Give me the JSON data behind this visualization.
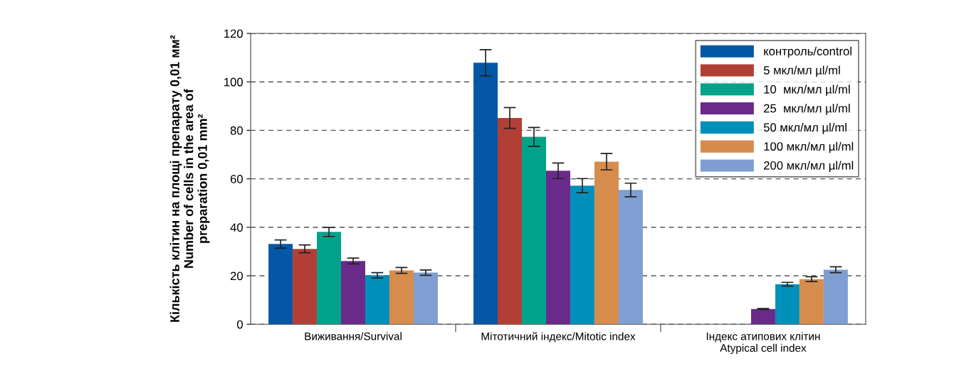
{
  "chart_data": {
    "type": "bar",
    "ylabel": "Кількість клітин на площі препарату 0,01 мм²\nNumber of cells in the area of\npreparation 0,01 mm²",
    "categories": [
      "Виживання/Survival",
      "Мітотичний індекс/Mitotic index",
      "Індекс атипових клітин\nAtypical cell index"
    ],
    "series": [
      {
        "name": "контроль/control",
        "color": "#0357a6",
        "values": [
          33.1,
          107.9,
          null
        ],
        "errors": [
          1.7,
          5.4,
          null
        ]
      },
      {
        "name": "5 мкл/мл µl/ml",
        "color": "#b23f36",
        "values": [
          31.1,
          85.1,
          null
        ],
        "errors": [
          1.6,
          4.3,
          null
        ]
      },
      {
        "name": "10  мкл/мл µl/ml",
        "color": "#00a38a",
        "values": [
          38.1,
          77.3,
          null
        ],
        "errors": [
          1.9,
          3.9,
          null
        ]
      },
      {
        "name": "25  мкл/мл µl/ml",
        "color": "#6a2a8a",
        "values": [
          26.1,
          63.3,
          6.3
        ],
        "errors": [
          1.2,
          3.2,
          0.2
        ]
      },
      {
        "name": "50 мкл/мл µl/ml",
        "color": "#0090b9",
        "values": [
          20.2,
          57.2,
          16.5
        ],
        "errors": [
          1.1,
          2.9,
          0.8
        ]
      },
      {
        "name": "100 мкл/мл µl/ml",
        "color": "#d68c4c",
        "values": [
          22.2,
          67.1,
          18.6
        ],
        "errors": [
          1.2,
          3.4,
          1.0
        ]
      },
      {
        "name": "200 мкл/мл µl/ml",
        "color": "#7f9ed1",
        "values": [
          21.3,
          55.4,
          22.5
        ],
        "errors": [
          1.1,
          2.8,
          1.2
        ]
      }
    ],
    "ylim": [
      0,
      120
    ],
    "yticks": [
      0,
      20,
      40,
      60,
      80,
      100,
      120
    ],
    "grid": "y",
    "legend": "top right"
  }
}
